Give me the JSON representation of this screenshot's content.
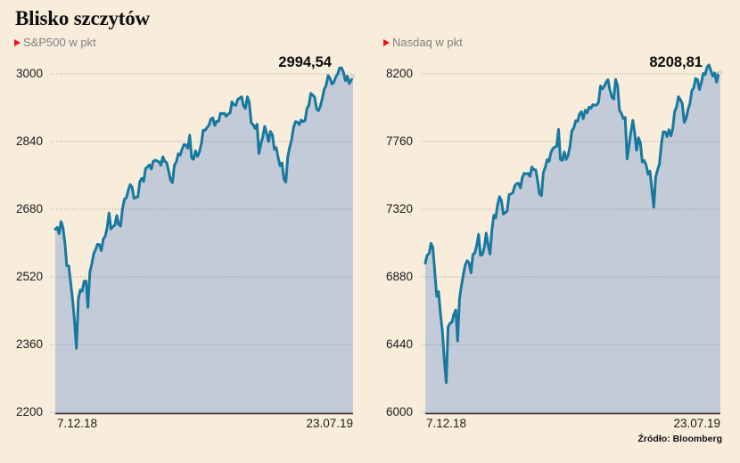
{
  "title": "Blisko szczytów",
  "source": "Źródło: Bloomberg",
  "colors": {
    "background": "#f8ecdb",
    "line": "#1779a0",
    "fill": "#c4cbd8",
    "grid": "#6f6f6f",
    "axis": "#2e2e2e",
    "end_dot": "#d9d9d9",
    "accent_red": "#e8141e"
  },
  "chart_data": [
    {
      "type": "area",
      "title": "S&P500 w pkt",
      "last_value_label": "2994,54",
      "ylim": [
        2200,
        3000
      ],
      "yticks": [
        3000,
        2840,
        2680,
        2520,
        2360,
        2200
      ],
      "x_start": "7.12.18",
      "x_end": "23.07.19",
      "grid": true,
      "values": [
        2633,
        2637,
        2622,
        2651,
        2637,
        2600,
        2546,
        2546,
        2507,
        2467,
        2417,
        2351,
        2468,
        2489,
        2486,
        2510,
        2510,
        2448,
        2532,
        2550,
        2575,
        2585,
        2597,
        2596,
        2582,
        2610,
        2616,
        2636,
        2671,
        2633,
        2639,
        2642,
        2665,
        2644,
        2640,
        2681,
        2704,
        2707,
        2725,
        2738,
        2732,
        2706,
        2708,
        2710,
        2745,
        2753,
        2746,
        2776,
        2780,
        2785,
        2775,
        2793,
        2796,
        2794,
        2792,
        2784,
        2804,
        2793,
        2790,
        2771,
        2749,
        2743,
        2784,
        2792,
        2811,
        2808,
        2822,
        2833,
        2832,
        2824,
        2855,
        2801,
        2798,
        2818,
        2805,
        2815,
        2834,
        2867,
        2867,
        2873,
        2879,
        2893,
        2896,
        2878,
        2888,
        2888,
        2907,
        2906,
        2907,
        2900,
        2905,
        2908,
        2934,
        2927,
        2926,
        2940,
        2943,
        2946,
        2924,
        2918,
        2946,
        2932,
        2884,
        2880,
        2871,
        2881,
        2812,
        2834,
        2851,
        2876,
        2860,
        2840,
        2864,
        2856,
        2822,
        2826,
        2802,
        2783,
        2789,
        2752,
        2744,
        2803,
        2826,
        2843,
        2873,
        2887,
        2886,
        2880,
        2891,
        2887,
        2889,
        2918,
        2926,
        2954,
        2950,
        2945,
        2917,
        2913,
        2924,
        2942,
        2964,
        2973,
        2996,
        2990,
        2976,
        2980,
        2993,
        3000,
        3014,
        3014,
        3004,
        2984,
        2995,
        2977,
        2985,
        2994.54
      ]
    },
    {
      "type": "area",
      "title": "Nasdaq w pkt",
      "last_value_label": "8208,81",
      "ylim": [
        6000,
        8200
      ],
      "yticks": [
        8200,
        7760,
        7320,
        6880,
        6440,
        6000
      ],
      "x_start": "7.12.18",
      "x_end": "23.07.19",
      "grid": true,
      "values": [
        6969,
        7021,
        7032,
        7098,
        7070,
        6911,
        6754,
        6784,
        6637,
        6528,
        6333,
        6193,
        6554,
        6579,
        6585,
        6635,
        6665,
        6464,
        6739,
        6823,
        6897,
        6957,
        6986,
        6971,
        6906,
        7024,
        7035,
        7085,
        7157,
        7020,
        7026,
        7073,
        7165,
        7086,
        7028,
        7183,
        7282,
        7264,
        7348,
        7402,
        7375,
        7288,
        7298,
        7308,
        7414,
        7420,
        7427,
        7472,
        7487,
        7489,
        7459,
        7527,
        7554,
        7549,
        7554,
        7533,
        7595,
        7578,
        7576,
        7506,
        7421,
        7408,
        7558,
        7591,
        7643,
        7631,
        7689,
        7714,
        7724,
        7729,
        7839,
        7643,
        7638,
        7692,
        7643,
        7669,
        7729,
        7829,
        7849,
        7895,
        7892,
        7939,
        7954,
        7909,
        7964,
        7947,
        7984,
        7976,
        8000,
        7996,
        7998,
        8015,
        8121,
        8102,
        8119,
        8146,
        8162,
        8095,
        8050,
        8037,
        8164,
        8123,
        7963,
        7943,
        7910,
        7917,
        7647,
        7734,
        7822,
        7898,
        7816,
        7703,
        7785,
        7751,
        7628,
        7637,
        7607,
        7547,
        7568,
        7453,
        7333,
        7528,
        7575,
        7616,
        7742,
        7823,
        7823,
        7792,
        7837,
        7797,
        7845,
        7954,
        7987,
        8051,
        8032,
        8006,
        7885,
        7910,
        7968,
        8006,
        8091,
        8109,
        8170,
        8162,
        8098,
        8141,
        8203,
        8196,
        8244,
        8258,
        8222,
        8185,
        8207,
        8146,
        8204,
        8208.81
      ]
    }
  ]
}
